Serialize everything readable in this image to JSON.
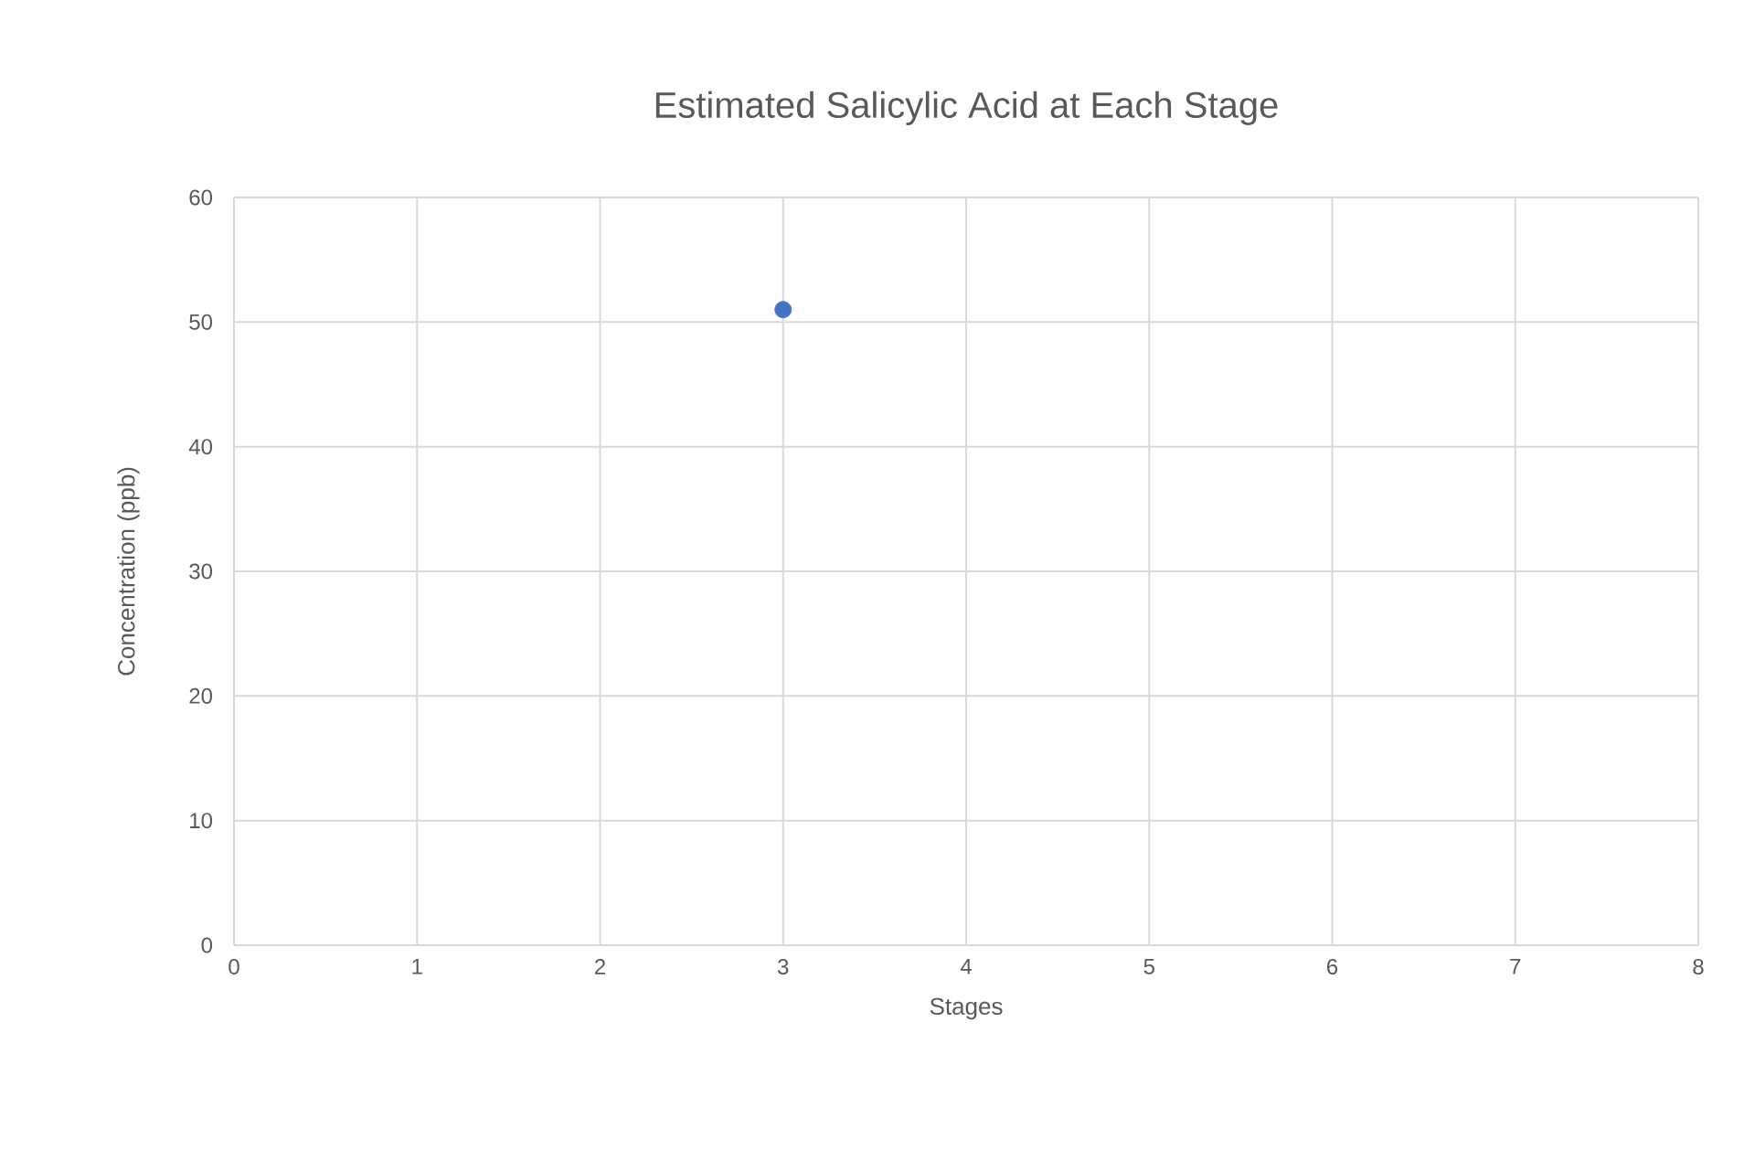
{
  "chart_data": {
    "type": "scatter",
    "title": "Estimated Salicylic Acid at Each Stage",
    "xlabel": "Stages",
    "ylabel": "Concentration (ppb)",
    "x": [
      3
    ],
    "values": [
      51
    ],
    "color": "#4472c4",
    "marker": "circle",
    "xlim": [
      0,
      8
    ],
    "xticks": [
      0,
      1,
      2,
      3,
      4,
      5,
      6,
      7,
      8
    ],
    "ylim": [
      0,
      60
    ],
    "yticks": [
      0,
      10,
      20,
      30,
      40,
      50,
      60
    ],
    "grid": true
  }
}
